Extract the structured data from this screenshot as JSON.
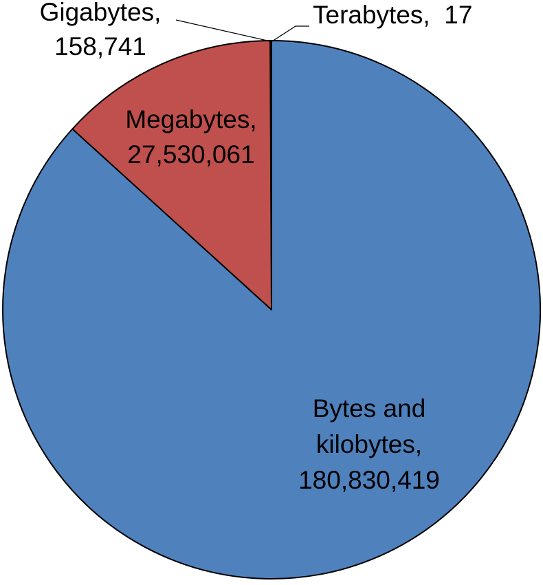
{
  "chart_data": {
    "type": "pie",
    "title": "",
    "start_angle_deg": 90,
    "direction": "clockwise",
    "slices": [
      {
        "label": "Terabytes",
        "value": 17,
        "value_text": "17",
        "color": "#000000",
        "label_lines": [
          "Terabytes,  17"
        ]
      },
      {
        "label": "Bytes and kilobytes",
        "value": 180830419,
        "value_text": "180,830,419",
        "color": "#4f81bd",
        "label_lines": [
          "Bytes and",
          "kilobytes,",
          "180,830,419"
        ]
      },
      {
        "label": "Megabytes",
        "value": 27530061,
        "value_text": "27,530,061",
        "color": "#c0504d",
        "label_lines": [
          "Megabytes,",
          "27,530,061"
        ]
      },
      {
        "label": "Gigabytes",
        "value": 158741,
        "value_text": "158,741",
        "color": "#000000",
        "label_lines": [
          "Gigabytes,",
          "158,741"
        ]
      }
    ],
    "legend": "none",
    "outline_color": "#000000"
  }
}
